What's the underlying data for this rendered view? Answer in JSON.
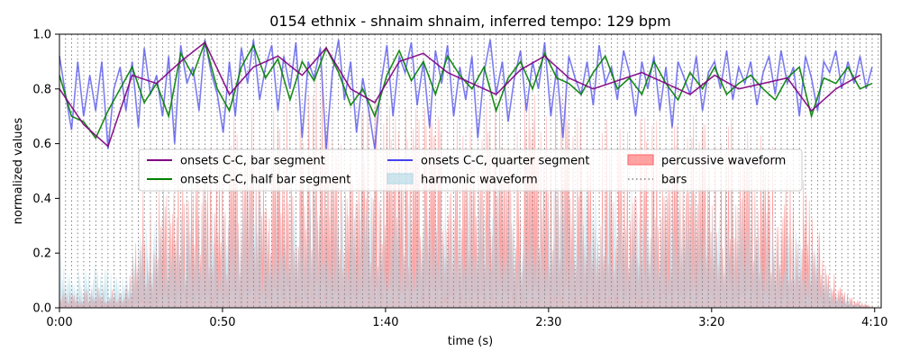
{
  "chart_data": {
    "type": "line",
    "title": "0154 ethnix - shnaim shnaim, inferred tempo: 129 bpm",
    "xlabel": "time (s)",
    "ylabel": "normalized values",
    "xlim": [
      0,
      252
    ],
    "ylim": [
      0,
      1.0
    ],
    "x_ticks": [
      {
        "value": 0,
        "label": "0:00"
      },
      {
        "value": 50,
        "label": "0:50"
      },
      {
        "value": 100,
        "label": "1:40"
      },
      {
        "value": 150,
        "label": "2:30"
      },
      {
        "value": 200,
        "label": "3:20"
      },
      {
        "value": 250,
        "label": "4:10"
      }
    ],
    "y_ticks": [
      {
        "value": 0.0,
        "label": "0.0"
      },
      {
        "value": 0.2,
        "label": "0.2"
      },
      {
        "value": 0.4,
        "label": "0.4"
      },
      {
        "value": 0.6,
        "label": "0.6"
      },
      {
        "value": 0.8,
        "label": "0.8"
      },
      {
        "value": 1.0,
        "label": "1.0"
      }
    ],
    "legend": {
      "placement": "center",
      "entries": [
        {
          "name": "onsets C-C, bar segment",
          "color": "#800080",
          "kind": "line"
        },
        {
          "name": "onsets C-C, half bar segment",
          "color": "#008000",
          "kind": "line"
        },
        {
          "name": "onsets C-C, quarter segment",
          "color": "#4444ee",
          "kind": "line"
        },
        {
          "name": "harmonic waveform",
          "color": "#add8e6",
          "kind": "patch"
        },
        {
          "name": "percussive waveform",
          "color": "#ff6666",
          "kind": "patch"
        },
        {
          "name": "bars",
          "color": "#808080",
          "kind": "dotted"
        }
      ]
    },
    "bar_interval_s": 1.86,
    "series": [
      {
        "name": "onsets C-C, bar segment",
        "color": "#800080",
        "x": [
          0,
          7.4,
          14.9,
          22.3,
          29.8,
          37.2,
          44.6,
          52.1,
          59.5,
          67,
          74.4,
          81.8,
          89.3,
          96.7,
          104.2,
          111.6,
          119,
          126.5,
          133.9,
          141.4,
          148.8,
          156.2,
          163.7,
          171.1,
          178.6,
          186,
          193.4,
          200.9,
          208.3,
          215.8,
          223.2,
          230.6,
          238.1,
          245.5
        ],
        "values": [
          0.8,
          0.67,
          0.59,
          0.85,
          0.82,
          0.9,
          0.97,
          0.78,
          0.88,
          0.92,
          0.85,
          0.95,
          0.8,
          0.75,
          0.9,
          0.93,
          0.86,
          0.82,
          0.78,
          0.87,
          0.92,
          0.84,
          0.8,
          0.83,
          0.86,
          0.82,
          0.78,
          0.85,
          0.8,
          0.82,
          0.84,
          0.72,
          0.8,
          0.85
        ]
      },
      {
        "name": "onsets C-C, half bar segment",
        "color": "#008000",
        "x": [
          0,
          3.7,
          7.4,
          11.1,
          14.9,
          18.6,
          22.3,
          26,
          29.8,
          33.5,
          37.2,
          40.9,
          44.6,
          48.4,
          52.1,
          55.8,
          59.5,
          63.2,
          67,
          70.7,
          74.4,
          78.1,
          81.8,
          85.6,
          89.3,
          93,
          96.7,
          100.4,
          104.2,
          107.9,
          111.6,
          115.3,
          119,
          122.8,
          126.5,
          130.2,
          133.9,
          137.6,
          141.4,
          145.1,
          148.8,
          152.5,
          156.2,
          160,
          163.7,
          167.4,
          171.1,
          174.8,
          178.6,
          182.3,
          186,
          189.7,
          193.4,
          197.2,
          200.9,
          204.6,
          208.3,
          212,
          215.8,
          219.5,
          223.2,
          226.9,
          230.6,
          234.4,
          238.1,
          241.8,
          245.5,
          249.2
        ],
        "values": [
          0.85,
          0.7,
          0.68,
          0.62,
          0.72,
          0.8,
          0.88,
          0.75,
          0.82,
          0.7,
          0.93,
          0.85,
          0.97,
          0.8,
          0.72,
          0.88,
          0.96,
          0.84,
          0.91,
          0.76,
          0.9,
          0.83,
          0.95,
          0.86,
          0.74,
          0.8,
          0.7,
          0.85,
          0.94,
          0.83,
          0.9,
          0.78,
          0.92,
          0.85,
          0.8,
          0.88,
          0.72,
          0.84,
          0.9,
          0.8,
          0.93,
          0.84,
          0.82,
          0.78,
          0.86,
          0.92,
          0.8,
          0.84,
          0.78,
          0.9,
          0.82,
          0.76,
          0.86,
          0.8,
          0.88,
          0.78,
          0.82,
          0.85,
          0.8,
          0.76,
          0.84,
          0.88,
          0.7,
          0.84,
          0.82,
          0.88,
          0.8,
          0.82
        ]
      },
      {
        "name": "onsets C-C, quarter segment",
        "color": "#4444ee",
        "x": [
          0,
          1.86,
          3.7,
          5.6,
          7.4,
          9.3,
          11.1,
          13,
          14.9,
          16.7,
          18.6,
          20.4,
          22.3,
          24.2,
          26,
          27.9,
          29.8,
          31.6,
          33.5,
          35.3,
          37.2,
          39.1,
          40.9,
          42.8,
          44.6,
          46.5,
          48.4,
          50.2,
          52.1,
          53.9,
          55.8,
          57.7,
          59.5,
          61.4,
          63.2,
          65.1,
          67,
          68.8,
          70.7,
          72.5,
          74.4,
          76.3,
          78.1,
          80,
          81.8,
          83.7,
          85.6,
          87.4,
          89.3,
          91.1,
          93,
          94.9,
          96.7,
          98.6,
          100.4,
          102.3,
          104.2,
          106,
          107.9,
          109.7,
          111.6,
          113.5,
          115.3,
          117.2,
          119,
          120.9,
          122.8,
          124.6,
          126.5,
          128.3,
          130.2,
          132.1,
          133.9,
          135.8,
          137.6,
          139.5,
          141.4,
          143.2,
          145.1,
          146.9,
          148.8,
          150.7,
          152.5,
          154.4,
          156.2,
          158.1,
          160,
          161.8,
          163.7,
          165.5,
          167.4,
          169.3,
          171.1,
          173,
          174.8,
          176.7,
          178.6,
          180.4,
          182.3,
          184.1,
          186,
          187.9,
          189.7,
          191.6,
          193.4,
          195.3,
          197.2,
          199,
          200.9,
          202.7,
          204.6,
          206.5,
          208.3,
          210.2,
          212,
          213.9,
          215.8,
          217.6,
          219.5,
          221.3,
          223.2,
          225.1,
          226.9,
          228.8,
          230.6,
          232.5,
          234.4,
          236.2,
          238.1,
          239.9,
          241.8,
          243.7,
          245.5,
          247.4,
          249.2
        ],
        "values": [
          0.92,
          0.78,
          0.65,
          0.9,
          0.7,
          0.85,
          0.72,
          0.9,
          0.58,
          0.8,
          0.88,
          0.72,
          0.9,
          0.66,
          0.95,
          0.78,
          0.85,
          0.7,
          0.92,
          0.6,
          0.96,
          0.82,
          0.88,
          0.72,
          0.98,
          0.86,
          0.78,
          0.64,
          0.9,
          0.7,
          0.95,
          0.82,
          0.98,
          0.76,
          0.88,
          0.96,
          0.72,
          0.92,
          0.8,
          0.97,
          0.62,
          0.9,
          0.84,
          0.95,
          0.58,
          0.86,
          0.98,
          0.76,
          0.9,
          0.64,
          0.84,
          0.72,
          0.58,
          0.82,
          0.96,
          0.7,
          0.92,
          0.86,
          0.97,
          0.74,
          0.9,
          0.66,
          0.94,
          0.82,
          0.96,
          0.7,
          0.88,
          0.76,
          0.92,
          0.62,
          0.86,
          0.98,
          0.78,
          0.9,
          0.68,
          0.84,
          0.94,
          0.72,
          0.9,
          0.8,
          0.97,
          0.7,
          0.88,
          0.62,
          0.92,
          0.84,
          0.78,
          0.9,
          0.74,
          0.96,
          0.82,
          0.88,
          0.76,
          0.94,
          0.86,
          0.7,
          0.9,
          0.8,
          0.92,
          0.72,
          0.88,
          0.66,
          0.9,
          0.84,
          0.78,
          0.92,
          0.72,
          0.86,
          0.9,
          0.8,
          0.94,
          0.76,
          0.88,
          0.82,
          0.9,
          0.74,
          0.86,
          0.92,
          0.78,
          0.94,
          0.82,
          0.88,
          0.7,
          0.92,
          0.84,
          0.72,
          0.9,
          0.86,
          0.94,
          0.8,
          0.9,
          0.82,
          0.92,
          0.8,
          0.88
        ]
      }
    ],
    "percussive_envelope": {
      "name": "percussive waveform",
      "color": "#ff6666",
      "x": [
        0,
        5,
        10,
        15,
        20,
        25,
        30,
        35,
        40,
        45,
        50,
        55,
        60,
        65,
        70,
        75,
        80,
        85,
        90,
        95,
        100,
        105,
        110,
        115,
        120,
        125,
        130,
        135,
        140,
        145,
        150,
        155,
        160,
        165,
        170,
        175,
        180,
        185,
        190,
        195,
        200,
        205,
        210,
        215,
        220,
        225,
        230,
        235,
        240,
        245,
        250
      ],
      "values": [
        0.05,
        0.04,
        0.06,
        0.05,
        0.04,
        0.3,
        0.35,
        0.4,
        0.38,
        0.42,
        0.45,
        0.5,
        0.55,
        0.5,
        0.58,
        0.55,
        0.62,
        0.52,
        0.48,
        0.56,
        0.5,
        0.55,
        0.52,
        0.58,
        0.5,
        0.54,
        0.52,
        0.56,
        0.5,
        0.55,
        0.52,
        0.58,
        0.54,
        0.5,
        0.52,
        0.55,
        0.5,
        0.48,
        0.52,
        0.5,
        0.46,
        0.5,
        0.48,
        0.45,
        0.42,
        0.38,
        0.3,
        0.15,
        0.05,
        0.02,
        0.0
      ]
    },
    "harmonic_envelope": {
      "name": "harmonic waveform",
      "color": "#add8e6",
      "x": [
        0,
        5,
        10,
        15,
        20,
        25,
        30,
        35,
        40,
        45,
        50,
        55,
        60,
        65,
        70,
        75,
        80,
        85,
        90,
        95,
        100,
        105,
        110,
        115,
        120,
        125,
        130,
        135,
        140,
        145,
        150,
        155,
        160,
        165,
        170,
        175,
        180,
        185,
        190,
        195,
        200,
        205,
        210,
        215,
        220,
        225,
        230,
        235,
        240,
        245,
        250
      ],
      "values": [
        0.15,
        0.1,
        0.12,
        0.1,
        0.08,
        0.22,
        0.25,
        0.24,
        0.28,
        0.26,
        0.3,
        0.32,
        0.34,
        0.3,
        0.36,
        0.34,
        0.38,
        0.32,
        0.3,
        0.34,
        0.32,
        0.34,
        0.3,
        0.36,
        0.32,
        0.34,
        0.33,
        0.35,
        0.32,
        0.34,
        0.32,
        0.36,
        0.34,
        0.32,
        0.33,
        0.34,
        0.32,
        0.3,
        0.32,
        0.31,
        0.3,
        0.31,
        0.3,
        0.28,
        0.26,
        0.24,
        0.2,
        0.1,
        0.04,
        0.01,
        0.0
      ]
    }
  }
}
